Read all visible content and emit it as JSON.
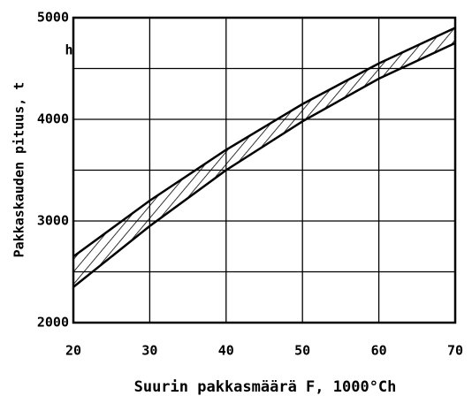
{
  "chart_data": {
    "type": "band",
    "x_label": "Suurin pakkasmäärä F, 1000°Ch",
    "y_label": "Pakkaskauden pituus, t",
    "y_unit": "h",
    "x": [
      20,
      30,
      40,
      50,
      60,
      70
    ],
    "series": [
      {
        "name": "upper",
        "color": "#000000",
        "values": [
          2650,
          3200,
          3700,
          4150,
          4550,
          4900
        ]
      },
      {
        "name": "lower",
        "color": "#000000",
        "values": [
          2350,
          2950,
          3500,
          3980,
          4400,
          4750
        ]
      }
    ],
    "xlim": [
      20,
      70
    ],
    "xticks": [
      20,
      30,
      40,
      50,
      60,
      70
    ],
    "ylim": [
      2000,
      5000
    ],
    "yticks": [
      2000,
      3000,
      4000,
      5000
    ],
    "yminor": [
      2500,
      3500,
      4500
    ],
    "grid": true
  }
}
